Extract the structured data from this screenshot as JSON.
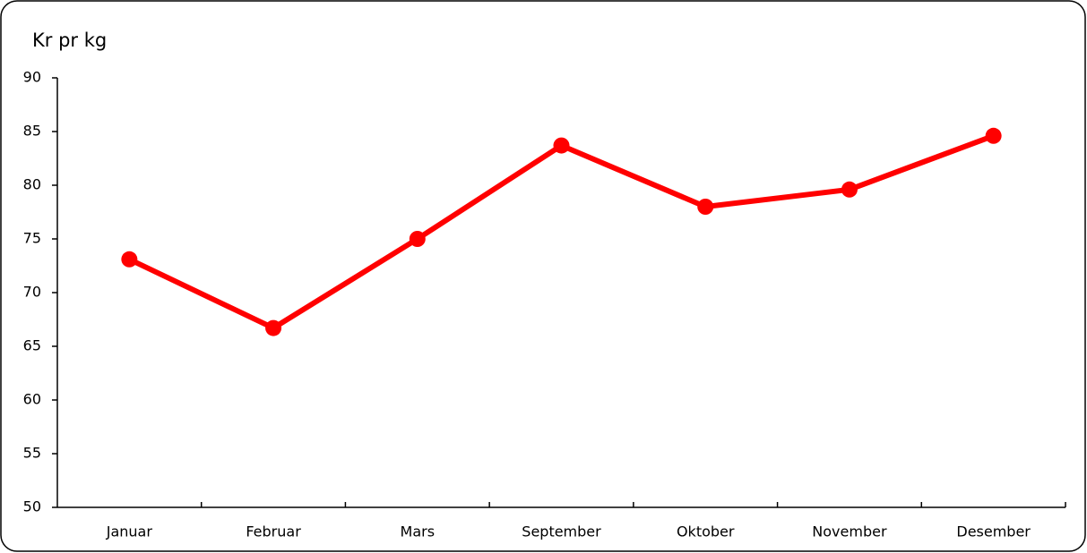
{
  "chart_data": {
    "type": "line",
    "y_label": "Kr pr kg",
    "categories": [
      "Januar",
      "Februar",
      "Mars",
      "September",
      "Oktober",
      "November",
      "Desember"
    ],
    "series": [
      {
        "name": "Kr pr kg",
        "color": "#ff0000",
        "values": [
          73.1,
          66.7,
          75,
          83.7,
          78,
          79.6,
          84.6
        ]
      }
    ],
    "ylim": [
      50,
      90
    ],
    "yticks": [
      50,
      55,
      60,
      65,
      70,
      75,
      80,
      85,
      90
    ],
    "grid": false,
    "legend": false
  }
}
